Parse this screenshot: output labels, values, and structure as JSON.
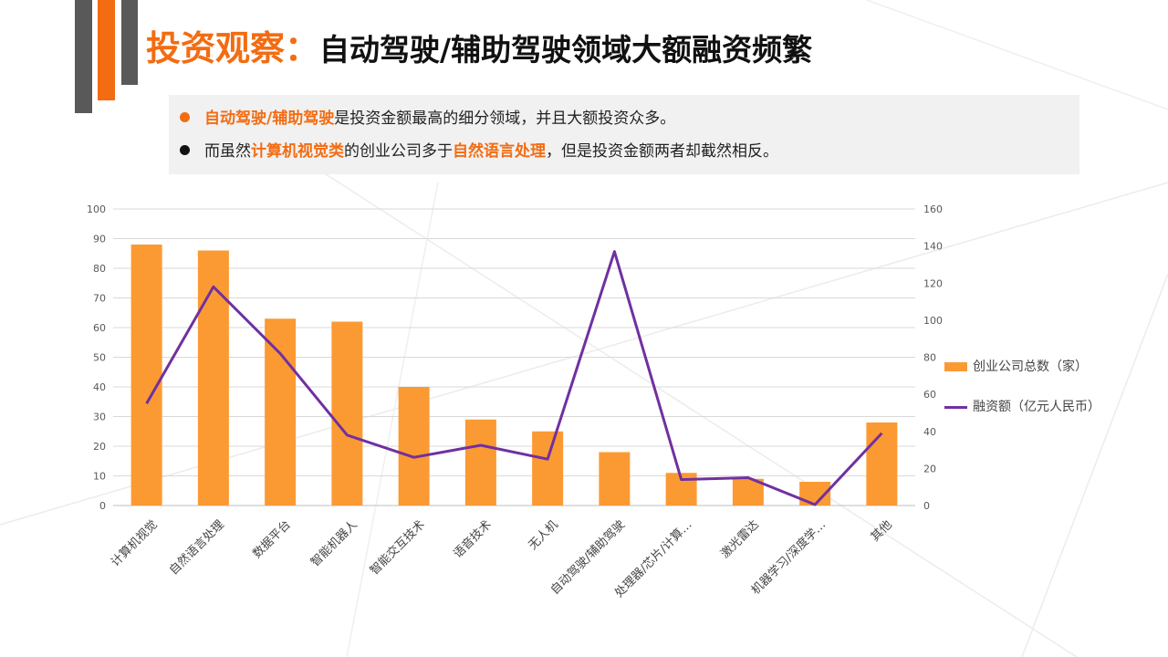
{
  "header": {
    "title_prefix": "投资观察：",
    "title_main": "自动驾驶/辅助驾驶领域大额融资频繁"
  },
  "bullets": [
    {
      "parts": [
        {
          "text": "自动驾驶/辅助驾驶",
          "hl": true
        },
        {
          "text": "是投资金额最高的细分领域，并且大额投资众多。",
          "hl": false
        }
      ],
      "dot_color": "#f36c12"
    },
    {
      "parts": [
        {
          "text": "而虽然",
          "hl": false
        },
        {
          "text": "计算机视觉类",
          "hl": true
        },
        {
          "text": "的创业公司多于",
          "hl": false
        },
        {
          "text": "自然语言处理",
          "hl": true
        },
        {
          "text": "，但是投资金额两者却截然相反。",
          "hl": false
        }
      ],
      "dot_color": "#111111"
    }
  ],
  "chart_data": {
    "type": "bar+line",
    "categories": [
      "计算机视觉",
      "自然语言处理",
      "数据平台",
      "智能机器人",
      "智能交互技术",
      "语音技术",
      "无人机",
      "自动驾驶/辅助驾驶",
      "处理器/芯片/计算…",
      "激光雷达",
      "机器学习/深度学…",
      "其他"
    ],
    "series": [
      {
        "name": "创业公司总数（家）",
        "type": "bar",
        "axis": "left",
        "color": "#fb9a33",
        "values": [
          88,
          86,
          63,
          62,
          40,
          29,
          25,
          18,
          11,
          9,
          8,
          28
        ]
      },
      {
        "name": "融资额（亿元人民币）",
        "type": "line",
        "axis": "right",
        "color": "#7030a0",
        "values": [
          55,
          118,
          82,
          38,
          26,
          32.5,
          25,
          137,
          14,
          15,
          0.5,
          39
        ]
      }
    ],
    "y_left": {
      "range": [
        0,
        100
      ],
      "ticks": [
        "0",
        "10",
        "20",
        "30",
        "40",
        "50",
        "60",
        "70",
        "80",
        "90",
        "100"
      ]
    },
    "y_right": {
      "range": [
        0,
        160
      ],
      "ticks": [
        "0",
        "20",
        "40",
        "60",
        "80",
        "100",
        "120",
        "140",
        "160"
      ]
    },
    "grid": true,
    "legend_position": "right"
  }
}
